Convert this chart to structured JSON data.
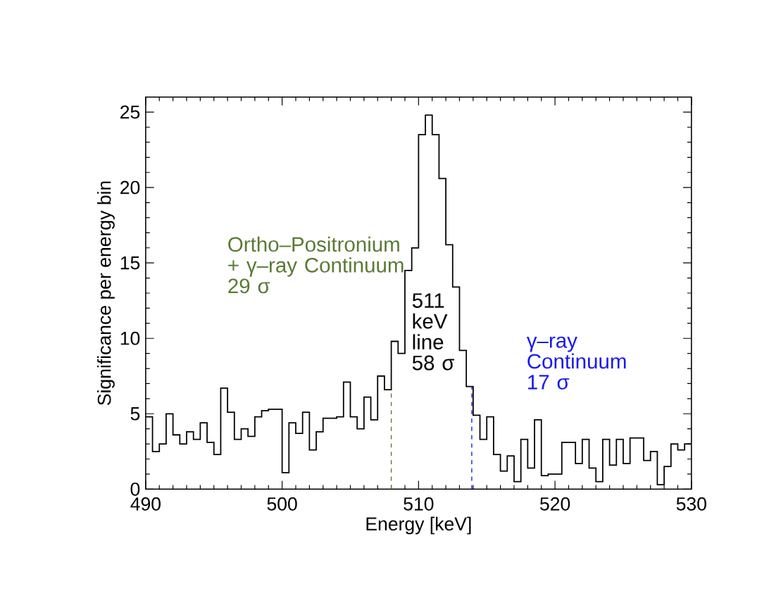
{
  "chart_data": {
    "type": "histogram",
    "xlabel": "Energy [keV]",
    "ylabel": "Significance per energy bin",
    "bins": [
      490,
      490.5,
      491,
      491.5,
      492,
      492.5,
      493,
      493.5,
      494,
      494.5,
      495,
      495.5,
      496,
      496.5,
      497,
      497.5,
      498,
      498.5,
      499,
      499.5,
      500,
      500.5,
      501,
      501.5,
      502,
      502.5,
      503,
      503.5,
      504,
      504.5,
      505,
      505.5,
      506,
      506.5,
      507,
      507.5,
      508,
      508.5,
      509,
      509.5,
      510,
      510.5,
      511,
      511.5,
      512,
      512.5,
      513,
      513.5,
      514,
      514.5,
      515,
      515.5,
      516,
      516.5,
      517,
      517.5,
      518,
      518.5,
      519,
      519.5,
      520,
      520.5,
      521,
      521.5,
      522,
      522.5,
      523,
      523.5,
      524,
      524.5,
      525,
      525.5,
      526,
      526.5,
      527,
      527.5,
      528,
      528.5,
      529,
      529.5,
      530
    ],
    "values": [
      4.8,
      2.5,
      3.0,
      5.0,
      3.6,
      3.0,
      3.8,
      3.3,
      4.4,
      3.1,
      2.3,
      6.7,
      5.1,
      3.3,
      4.0,
      3.5,
      4.8,
      5.2,
      5.3,
      5.3,
      1.1,
      4.4,
      3.7,
      5.1,
      2.6,
      3.8,
      4.7,
      4.7,
      4.8,
      7.1,
      4.8,
      4.0,
      6.1,
      4.6,
      7.5,
      6.6,
      9.8,
      9.0,
      14.5,
      16.0,
      23.5,
      24.8,
      23.5,
      20.6,
      16.2,
      13.4,
      9.2,
      6.8,
      4.9,
      3.3,
      4.8,
      2.3,
      1.2,
      2.2,
      0.5,
      3.3,
      1.4,
      4.6,
      0.9,
      1.0,
      1.0,
      3.1,
      3.1,
      1.7,
      3.3,
      1.4,
      0.5,
      3.3,
      1.6,
      3.3,
      1.7,
      3.4,
      3.4,
      1.9,
      2.5,
      0.3,
      1.5,
      3.0,
      2.6,
      3.0
    ],
    "color": "#000000",
    "xlim": [
      490,
      530
    ],
    "ylim": [
      0,
      26
    ],
    "xticks": [
      490,
      500,
      510,
      520,
      530
    ],
    "yticks": [
      0,
      5,
      10,
      15,
      20,
      25
    ],
    "ref_lines": [
      {
        "axis": "x",
        "value": 508,
        "label": "Ortho–Positronium + γ–ray Continuum 29 σ",
        "color": "#5a7a35",
        "line_style": "dashed"
      },
      {
        "axis": "x",
        "value": 513.9,
        "label": "γ–ray Continuum 17 σ",
        "color": "#1a1aee",
        "line_style": "dashed"
      }
    ],
    "annotations": [
      "511 keV line 58 σ"
    ]
  }
}
